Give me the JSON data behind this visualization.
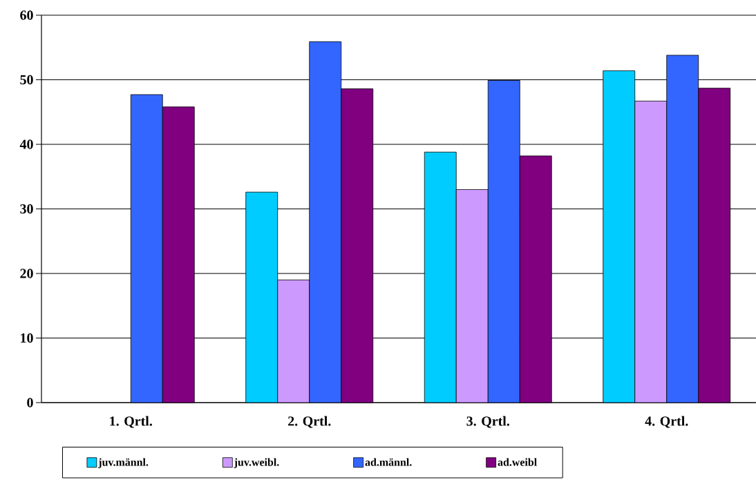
{
  "chart_data": {
    "type": "bar",
    "categories": [
      "1. Qrtl.",
      "2. Qrtl.",
      "3. Qrtl.",
      "4. Qrtl."
    ],
    "series": [
      {
        "name": "juv.männl.",
        "color": "#00ccff",
        "values": [
          null,
          32.6,
          38.8,
          51.4
        ]
      },
      {
        "name": "juv.weibl.",
        "color": "#cc99ff",
        "values": [
          null,
          19.0,
          33.0,
          46.7
        ]
      },
      {
        "name": "ad.männl.",
        "color": "#3366ff",
        "values": [
          47.7,
          55.9,
          49.9,
          53.8
        ]
      },
      {
        "name": "ad.weibl",
        "color": "#800080",
        "values": [
          45.8,
          48.6,
          38.2,
          48.7
        ]
      }
    ],
    "ylim": [
      0,
      60
    ],
    "yticks": [
      0,
      10,
      20,
      30,
      40,
      50,
      60
    ],
    "grid": "y",
    "legend": "bottom"
  }
}
